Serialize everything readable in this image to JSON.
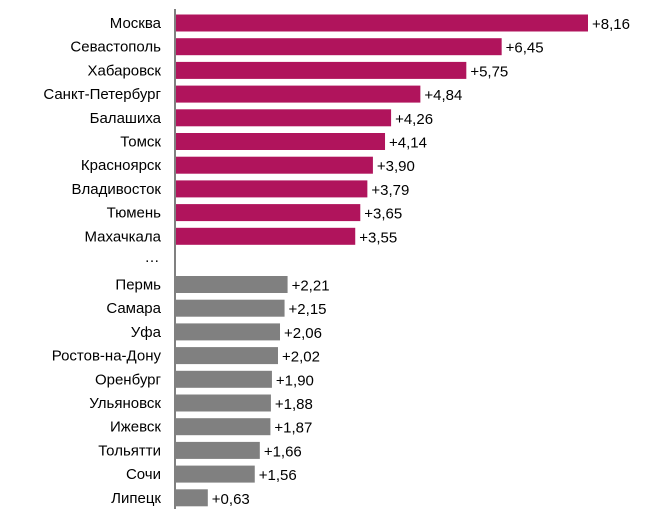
{
  "colors": {
    "top_group": "#B0145C",
    "bottom_group": "#808080"
  },
  "chart_data": {
    "type": "bar",
    "orientation": "horizontal",
    "title": "",
    "xlabel": "",
    "ylabel": "",
    "grid": false,
    "legend": "none",
    "xlim": [
      0,
      8.16
    ],
    "gap_label": "…",
    "categories": [
      "Москва",
      "Севастополь",
      "Хабаровск",
      "Санкт-Петербург",
      "Балашиха",
      "Томск",
      "Красноярск",
      "Владивосток",
      "Тюмень",
      "Махачкала",
      "Пермь",
      "Самара",
      "Уфа",
      "Ростов-на-Дону",
      "Оренбург",
      "Ульяновск",
      "Ижевск",
      "Тольятти",
      "Сочи",
      "Липецк"
    ],
    "values": [
      8.16,
      6.45,
      5.75,
      4.84,
      4.26,
      4.14,
      3.9,
      3.79,
      3.65,
      3.55,
      2.21,
      2.15,
      2.06,
      2.02,
      1.9,
      1.88,
      1.87,
      1.66,
      1.56,
      0.63
    ],
    "value_labels": [
      "+8,16",
      "+6,45",
      "+5,75",
      "+4,84",
      "+4,26",
      "+4,14",
      "+3,90",
      "+3,79",
      "+3,65",
      "+3,55",
      "+2,21",
      "+2,15",
      "+2,06",
      "+2,02",
      "+1,90",
      "+1,88",
      "+1,87",
      "+1,66",
      "+1,56",
      "+0,63"
    ],
    "groups": [
      "top",
      "top",
      "top",
      "top",
      "top",
      "top",
      "top",
      "top",
      "top",
      "top",
      "bottom",
      "bottom",
      "bottom",
      "bottom",
      "bottom",
      "bottom",
      "bottom",
      "bottom",
      "bottom",
      "bottom"
    ]
  }
}
